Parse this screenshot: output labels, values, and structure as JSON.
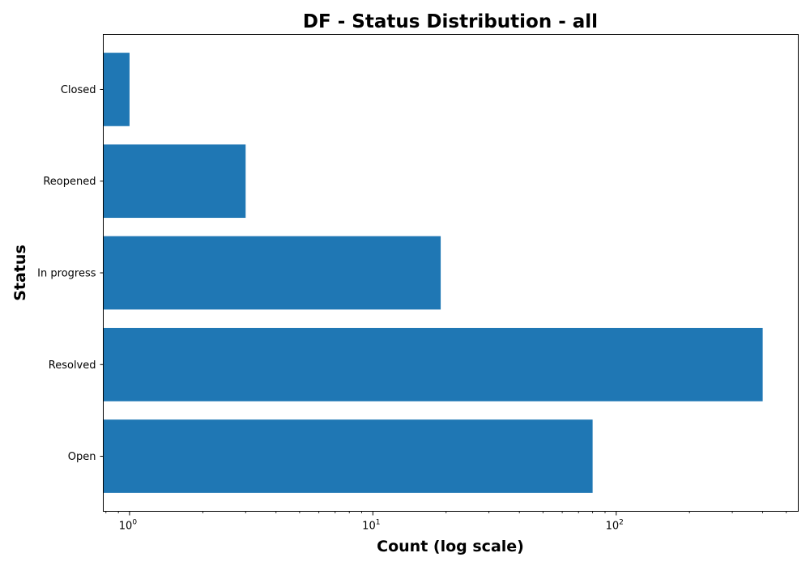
{
  "chart_data": {
    "type": "bar",
    "orientation": "horizontal",
    "title": "DF - Status Distribution - all",
    "xlabel": "Count (log scale)",
    "ylabel": "Status",
    "xscale": "log",
    "xlim": [
      0.78,
      560
    ],
    "x_ticks": [
      {
        "value": 1,
        "base": "10",
        "exp": "0"
      },
      {
        "value": 10,
        "base": "10",
        "exp": "1"
      },
      {
        "value": 100,
        "base": "10",
        "exp": "2"
      }
    ],
    "categories": [
      "Open",
      "Resolved",
      "In progress",
      "Reopened",
      "Closed"
    ],
    "values": [
      80,
      400,
      19,
      3,
      1
    ],
    "bar_color": "#1f77b4",
    "grid": false,
    "legend": "none"
  }
}
